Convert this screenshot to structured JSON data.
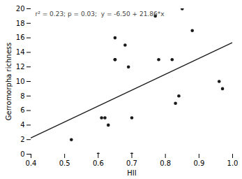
{
  "chart_data": {
    "type": "scatter",
    "xlabel": "HII",
    "ylabel": "Gerromorpha richness",
    "annotation": "r² = 0.23; p = 0.03;  y = -6.50 + 21.86*x",
    "series": [
      {
        "type": "scatter",
        "color": "#1a1a1a",
        "x": [
          0.52,
          0.6,
          0.61,
          0.62,
          0.63,
          0.65,
          0.65,
          0.65,
          0.68,
          0.69,
          0.7,
          0.7,
          0.77,
          0.78,
          0.82,
          0.83,
          0.84,
          0.85,
          0.88,
          0.96,
          0.97
        ],
        "values": [
          2,
          0,
          5,
          5,
          4,
          16,
          13,
          13,
          15,
          12,
          5,
          0,
          19,
          13,
          13,
          7,
          8,
          20,
          17,
          10,
          9
        ]
      },
      {
        "type": "line",
        "color": "#1a1a1a",
        "x": [
          0.4,
          1.0
        ],
        "values": [
          2.244,
          15.36
        ]
      }
    ],
    "xlim": [
      0.4,
      1.0
    ],
    "ylim": [
      0,
      20
    ],
    "xticks": [
      0.4,
      0.5,
      0.6,
      0.7,
      0.8,
      0.9,
      {
        "value": 1.0,
        "label": "1.0"
      }
    ],
    "yticks": [
      0,
      2,
      4,
      6,
      8,
      10,
      12,
      14,
      16,
      18,
      20
    ],
    "grid": false
  }
}
